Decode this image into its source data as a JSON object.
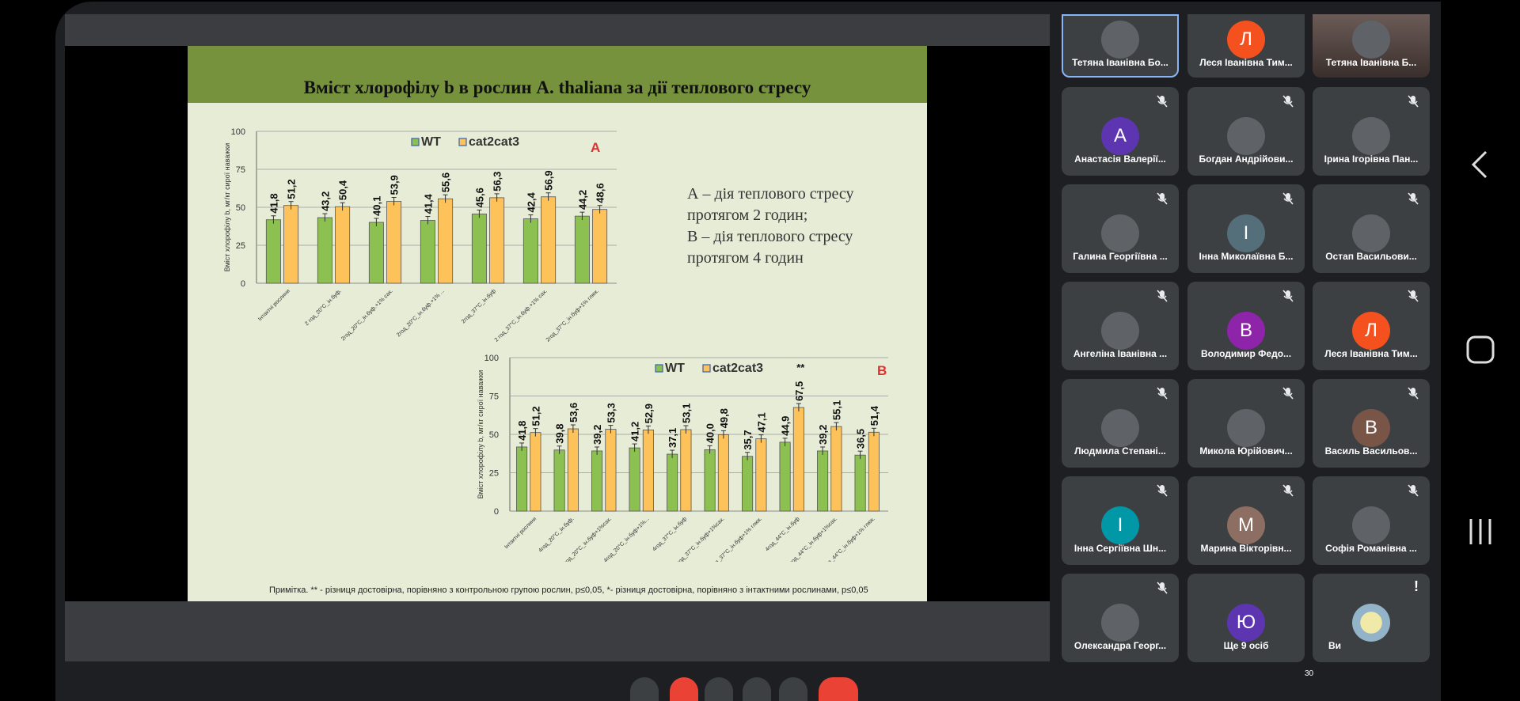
{
  "slide": {
    "title": "Вміст хлорофілу b в рослин A. thaliana за дії теплового стресу",
    "description_a": "А – дія теплового стресу протягом 2 годин;",
    "description_b": "В – дія теплового стресу протягом 4 годин",
    "note": "Примітка. ** - різниця достовірна, порівняно з контрольною групою рослин, p≤0,05, *- різниця достовірна, порівняно з інтактними рослинами, p≤0,05"
  },
  "chart_data": [
    {
      "type": "bar",
      "panel_label": "A",
      "ylabel": "Вміст хлорофілу b, мг/кг сирої наважки",
      "ylim": [
        0,
        100
      ],
      "yticks": [
        0,
        25,
        50,
        75,
        100
      ],
      "categories": [
        "Інтактні рослини",
        "2 год_20°C_ін.буф.",
        "2год_20°C_ін.буф.+1% сах.",
        "2год_20°C_ін.буф.+1% ...",
        "2год_37°C_ін.буф",
        "2 год_37°C_ін.буф.+1% сах.",
        "2год_37°C_ін.буф+1% глюк."
      ],
      "series": [
        {
          "name": "WT",
          "values": [
            41.8,
            43.2,
            40.1,
            41.4,
            45.6,
            42.4,
            44.2
          ],
          "labels": [
            "41,8",
            "43,2",
            "40,1",
            "41,4",
            "45,6",
            "42,4",
            "44,2"
          ],
          "color": "#8cc152"
        },
        {
          "name": "cat2cat3",
          "values": [
            51.2,
            50.4,
            53.9,
            55.6,
            56.3,
            56.9,
            48.6
          ],
          "labels": [
            "51,2",
            "50,4",
            "53,9",
            "55,6",
            "56,3",
            "56,9",
            "48,6"
          ],
          "color": "#fdc259"
        }
      ],
      "legend": "top-center"
    },
    {
      "type": "bar",
      "panel_label": "B",
      "ylabel": "Вміст хлорофілу b, мг/кг сирої наважки",
      "ylim": [
        0,
        100
      ],
      "yticks": [
        0,
        25,
        50,
        75,
        100
      ],
      "categories": [
        "Інтактні рослини",
        "4год_20°C_ін.буф.",
        "4год_20°C_ін.буф+1%сах.",
        "4год_20°C_ін.буф+1%...",
        "4год_37°C_ін.буф",
        "4год_37°C_ін.буф+1%сах.",
        "4год_37°C_ін.буф+1% глюк.",
        "4год_44°C_ін.буф",
        "4год_44°C_ін.буф+1%сах.",
        "4год_44°C_ін.буф+1% глюк."
      ],
      "series": [
        {
          "name": "WT",
          "values": [
            41.8,
            39.8,
            39.2,
            41.2,
            37.1,
            40.0,
            35.7,
            44.9,
            39.2,
            36.5
          ],
          "labels": [
            "41,8",
            "39,8",
            "39,2",
            "41,2",
            "37,1",
            "40,0",
            "35,7",
            "44,9",
            "39,2",
            "36,5"
          ],
          "color": "#8cc152"
        },
        {
          "name": "cat2cat3",
          "values": [
            51.2,
            53.6,
            53.3,
            52.9,
            53.1,
            49.8,
            47.1,
            67.5,
            55.1,
            51.4
          ],
          "labels": [
            "51,2",
            "53,6",
            "53,3",
            "52,9",
            "53,1",
            "49,8",
            "47,1",
            "67,5",
            "55,1",
            "51,4"
          ],
          "color": "#fdc259"
        }
      ],
      "annotations": [
        {
          "category_index": 7,
          "text": "**"
        }
      ],
      "legend": "top-center"
    }
  ],
  "participants": [
    {
      "name": "Тетяна Іванівна Бо...",
      "avatar": "",
      "color": "#5f6368",
      "photo": true,
      "muted": false,
      "active": true
    },
    {
      "name": "Леся Іванівна Тим...",
      "avatar": "Л",
      "color": "#f4511e",
      "photo": false,
      "muted": false
    },
    {
      "name": "Тетяна Іванівна Б...",
      "avatar": "",
      "color": "#5f6368",
      "photo": true,
      "muted": false,
      "video": true
    },
    {
      "name": "Анастасія Валерії...",
      "avatar": "А",
      "color": "#5e35b1",
      "photo": false,
      "muted": true
    },
    {
      "name": "Богдан Андрійови...",
      "avatar": "",
      "color": "#5f6368",
      "photo": true,
      "muted": true
    },
    {
      "name": "Ірина Ігорівна Пан...",
      "avatar": "",
      "color": "#5f6368",
      "photo": true,
      "muted": true
    },
    {
      "name": "Галина Георгіївна ...",
      "avatar": "",
      "color": "#5f6368",
      "photo": true,
      "muted": true
    },
    {
      "name": "Інна Миколаївна Б...",
      "avatar": "І",
      "color": "#546e7a",
      "photo": false,
      "muted": true
    },
    {
      "name": "Остап Васильови...",
      "avatar": "",
      "color": "#5f6368",
      "photo": true,
      "muted": true
    },
    {
      "name": "Ангеліна Іванівна ...",
      "avatar": "",
      "color": "#5f6368",
      "photo": true,
      "muted": true
    },
    {
      "name": "Володимир Федо...",
      "avatar": "В",
      "color": "#8e24aa",
      "photo": false,
      "muted": true
    },
    {
      "name": "Леся Іванівна Тим...",
      "avatar": "Л",
      "color": "#f4511e",
      "photo": false,
      "muted": true
    },
    {
      "name": "Людмила Степані...",
      "avatar": "",
      "color": "#5f6368",
      "photo": true,
      "muted": true
    },
    {
      "name": "Микола Юрійович...",
      "avatar": "",
      "color": "#5f6368",
      "photo": true,
      "muted": true
    },
    {
      "name": "Василь Васильов...",
      "avatar": "В",
      "color": "#795548",
      "photo": false,
      "muted": true
    },
    {
      "name": "Інна Сергіївна Шн...",
      "avatar": "І",
      "color": "#0097a7",
      "photo": false,
      "muted": true
    },
    {
      "name": "Марина Вікторівн...",
      "avatar": "М",
      "color": "#8d6e63",
      "photo": false,
      "muted": true
    },
    {
      "name": "Софія Романівна ...",
      "avatar": "",
      "color": "#5f6368",
      "photo": true,
      "muted": true
    },
    {
      "name": "Олександра Георг...",
      "avatar": "",
      "color": "#5f6368",
      "photo": true,
      "muted": true
    },
    {
      "name": "Ще 9 осіб",
      "avatar": "Ю",
      "color": "#5e35b1",
      "photo": false,
      "muted": false,
      "more": true
    },
    {
      "name": "Ви",
      "avatar": "",
      "color": "#5f6368",
      "photo": true,
      "muted": false,
      "self": true
    }
  ],
  "participant_count": "30",
  "icons": {
    "back": "chevron-left-icon",
    "home": "square-icon",
    "recents": "recents-icon"
  }
}
